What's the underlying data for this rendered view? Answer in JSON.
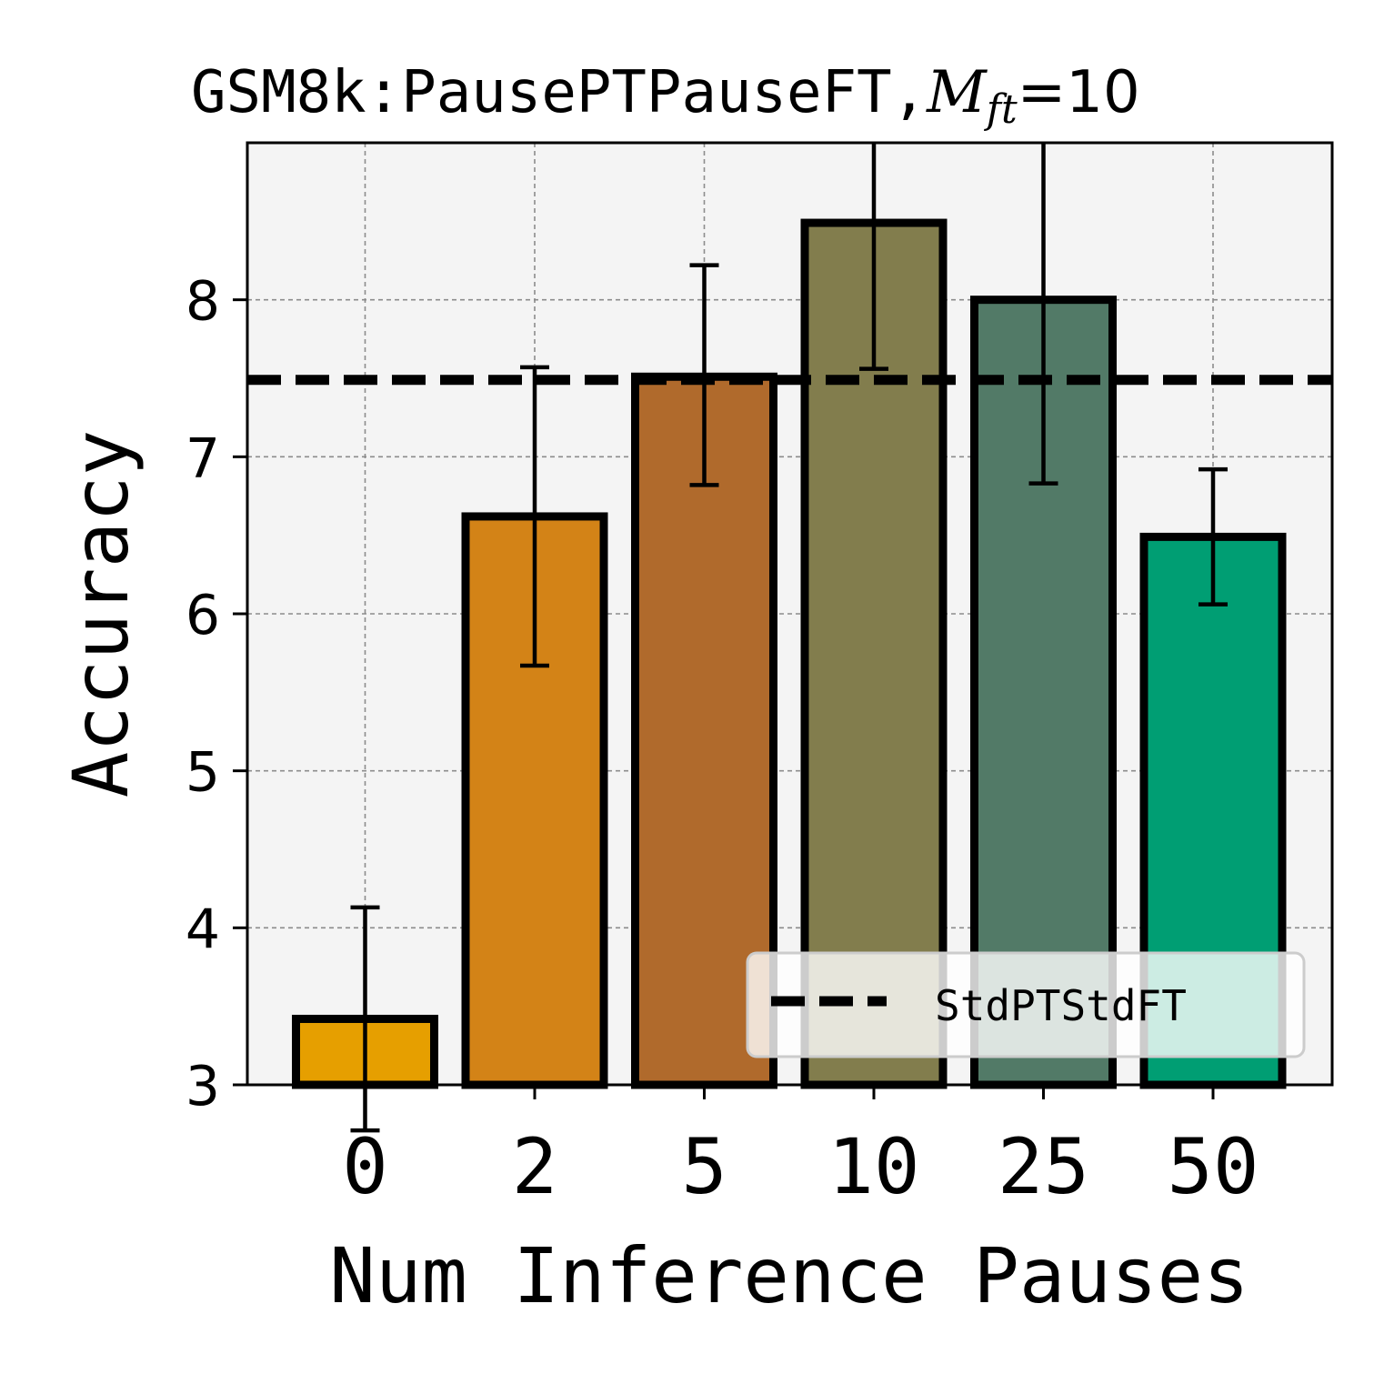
{
  "chart_data": {
    "type": "bar",
    "title_prefix": "GSM8k:PausePTPauseFT,",
    "title_math_symbol": "M",
    "title_math_subscript": "ft",
    "title_math_suffix": "=10",
    "xlabel": "Num Inference Pauses",
    "ylabel": "Accuracy",
    "ylim": [
      3,
      9
    ],
    "yticks": [
      3,
      4,
      5,
      6,
      7,
      8
    ],
    "grid": true,
    "categories": [
      "0",
      "2",
      "5",
      "10",
      "25",
      "50"
    ],
    "values": [
      3.42,
      6.62,
      7.51,
      8.49,
      8.0,
      6.49
    ],
    "error_low": [
      2.71,
      5.67,
      6.82,
      7.56,
      6.83,
      6.06
    ],
    "error_high": [
      4.13,
      7.57,
      8.22,
      9.42,
      9.17,
      6.92
    ],
    "bar_colors": [
      "#e69f00",
      "#d38317",
      "#b06a2c",
      "#827d4d",
      "#527a67",
      "#009e73"
    ],
    "reference_line": {
      "label": "StdPTStdFT",
      "value": 7.49
    },
    "legend_position": "lower right"
  }
}
